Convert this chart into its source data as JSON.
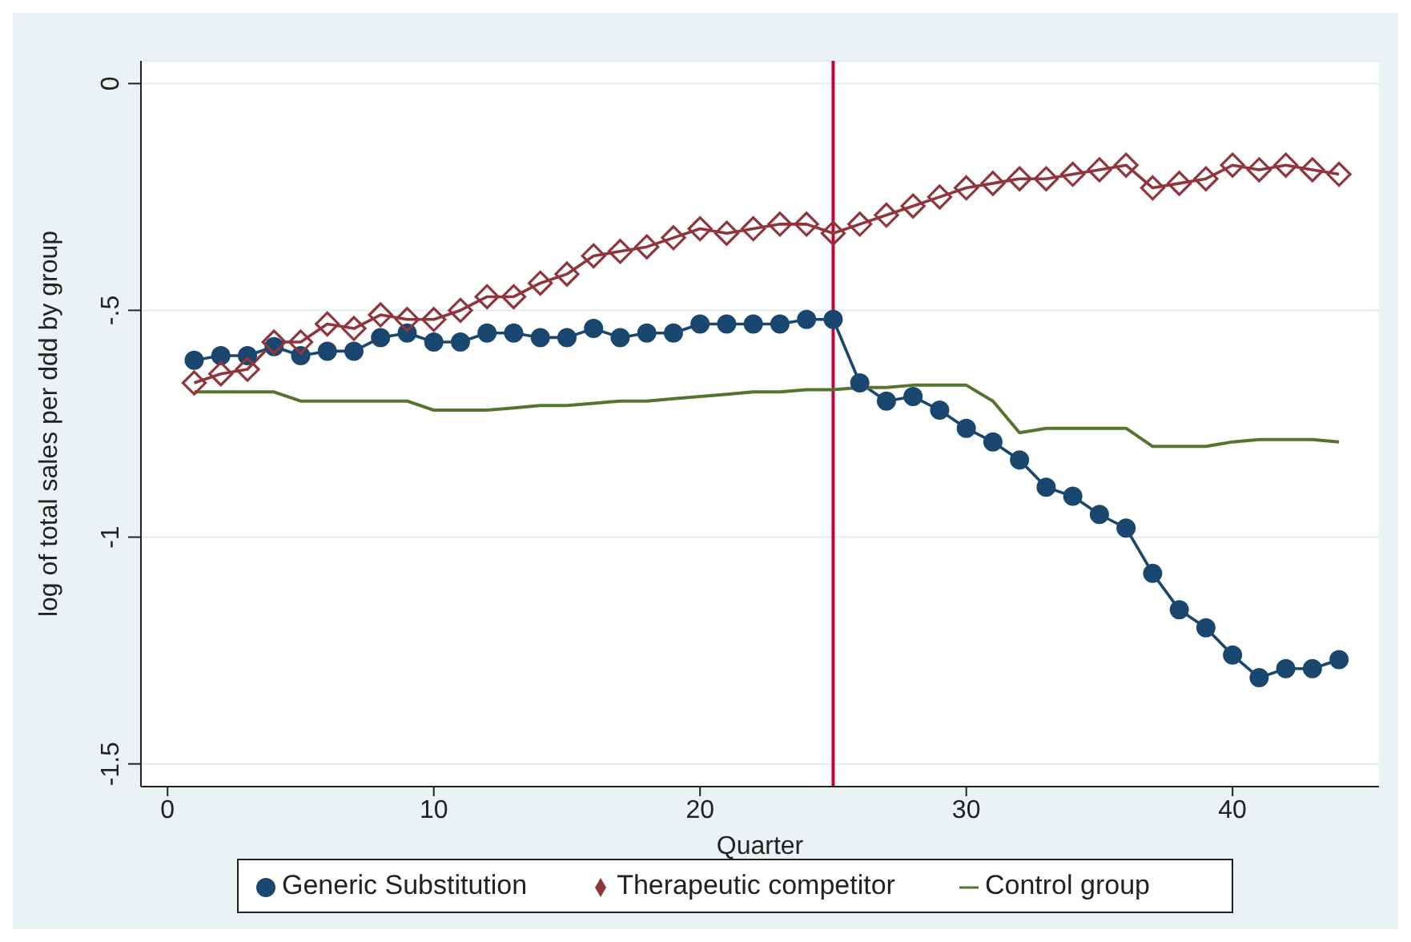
{
  "chart_data": {
    "type": "line",
    "xlabel": "Quarter",
    "ylabel": "log of total sales per ddd by group",
    "x": [
      1,
      2,
      3,
      4,
      5,
      6,
      7,
      8,
      9,
      10,
      11,
      12,
      13,
      14,
      15,
      16,
      17,
      18,
      19,
      20,
      21,
      22,
      23,
      24,
      25,
      26,
      27,
      28,
      29,
      30,
      31,
      32,
      33,
      34,
      35,
      36,
      37,
      38,
      39,
      40,
      41,
      42,
      43,
      44
    ],
    "series": [
      {
        "name": "Generic Substitution",
        "color": "#1a476f",
        "marker": "circle",
        "values": [
          -0.61,
          -0.6,
          -0.6,
          -0.58,
          -0.6,
          -0.59,
          -0.59,
          -0.56,
          -0.55,
          -0.57,
          -0.57,
          -0.55,
          -0.55,
          -0.56,
          -0.56,
          -0.54,
          -0.56,
          -0.55,
          -0.55,
          -0.53,
          -0.53,
          -0.53,
          -0.53,
          -0.52,
          -0.52,
          -0.66,
          -0.7,
          -0.69,
          -0.72,
          -0.76,
          -0.79,
          -0.83,
          -0.89,
          -0.91,
          -0.95,
          -0.98,
          -1.08,
          -1.16,
          -1.2,
          -1.26,
          -1.31,
          -1.29,
          -1.29,
          -1.27
        ]
      },
      {
        "name": "Therapeutic competitor",
        "color": "#90353b",
        "marker": "diamond",
        "values": [
          -0.66,
          -0.64,
          -0.63,
          -0.57,
          -0.57,
          -0.53,
          -0.54,
          -0.51,
          -0.52,
          -0.52,
          -0.5,
          -0.47,
          -0.47,
          -0.44,
          -0.42,
          -0.38,
          -0.37,
          -0.36,
          -0.34,
          -0.32,
          -0.33,
          -0.32,
          -0.31,
          -0.31,
          -0.33,
          -0.31,
          -0.29,
          -0.27,
          -0.25,
          -0.23,
          -0.22,
          -0.21,
          -0.21,
          -0.2,
          -0.19,
          -0.18,
          -0.23,
          -0.22,
          -0.21,
          -0.18,
          -0.19,
          -0.18,
          -0.19,
          -0.2
        ]
      },
      {
        "name": "Control group",
        "color": "#55752f",
        "marker": "none",
        "values": [
          -0.68,
          -0.68,
          -0.68,
          -0.68,
          -0.7,
          -0.7,
          -0.7,
          -0.7,
          -0.7,
          -0.72,
          -0.72,
          -0.72,
          -0.715,
          -0.71,
          -0.71,
          -0.705,
          -0.7,
          -0.7,
          -0.695,
          -0.69,
          -0.685,
          -0.68,
          -0.68,
          -0.675,
          -0.675,
          -0.67,
          -0.67,
          -0.665,
          -0.665,
          -0.665,
          -0.7,
          -0.77,
          -0.76,
          -0.76,
          -0.76,
          -0.76,
          -0.8,
          -0.8,
          -0.8,
          -0.79,
          -0.785,
          -0.785,
          -0.785,
          -0.79
        ]
      }
    ],
    "xlim": [
      -1,
      45.5
    ],
    "xticks": [
      0,
      10,
      20,
      30,
      40
    ],
    "ylim": [
      -1.55,
      0.05
    ],
    "yticks": [
      {
        "value": 0,
        "label": "0"
      },
      {
        "value": -0.5,
        "label": "-.5"
      },
      {
        "value": -1,
        "label": "-1"
      },
      {
        "value": -1.5,
        "label": "-1.5"
      }
    ],
    "grid": "y",
    "legend": "bottom",
    "ref_lines": [
      {
        "axis": "x",
        "value": 25,
        "color": "#c10534"
      }
    ]
  }
}
